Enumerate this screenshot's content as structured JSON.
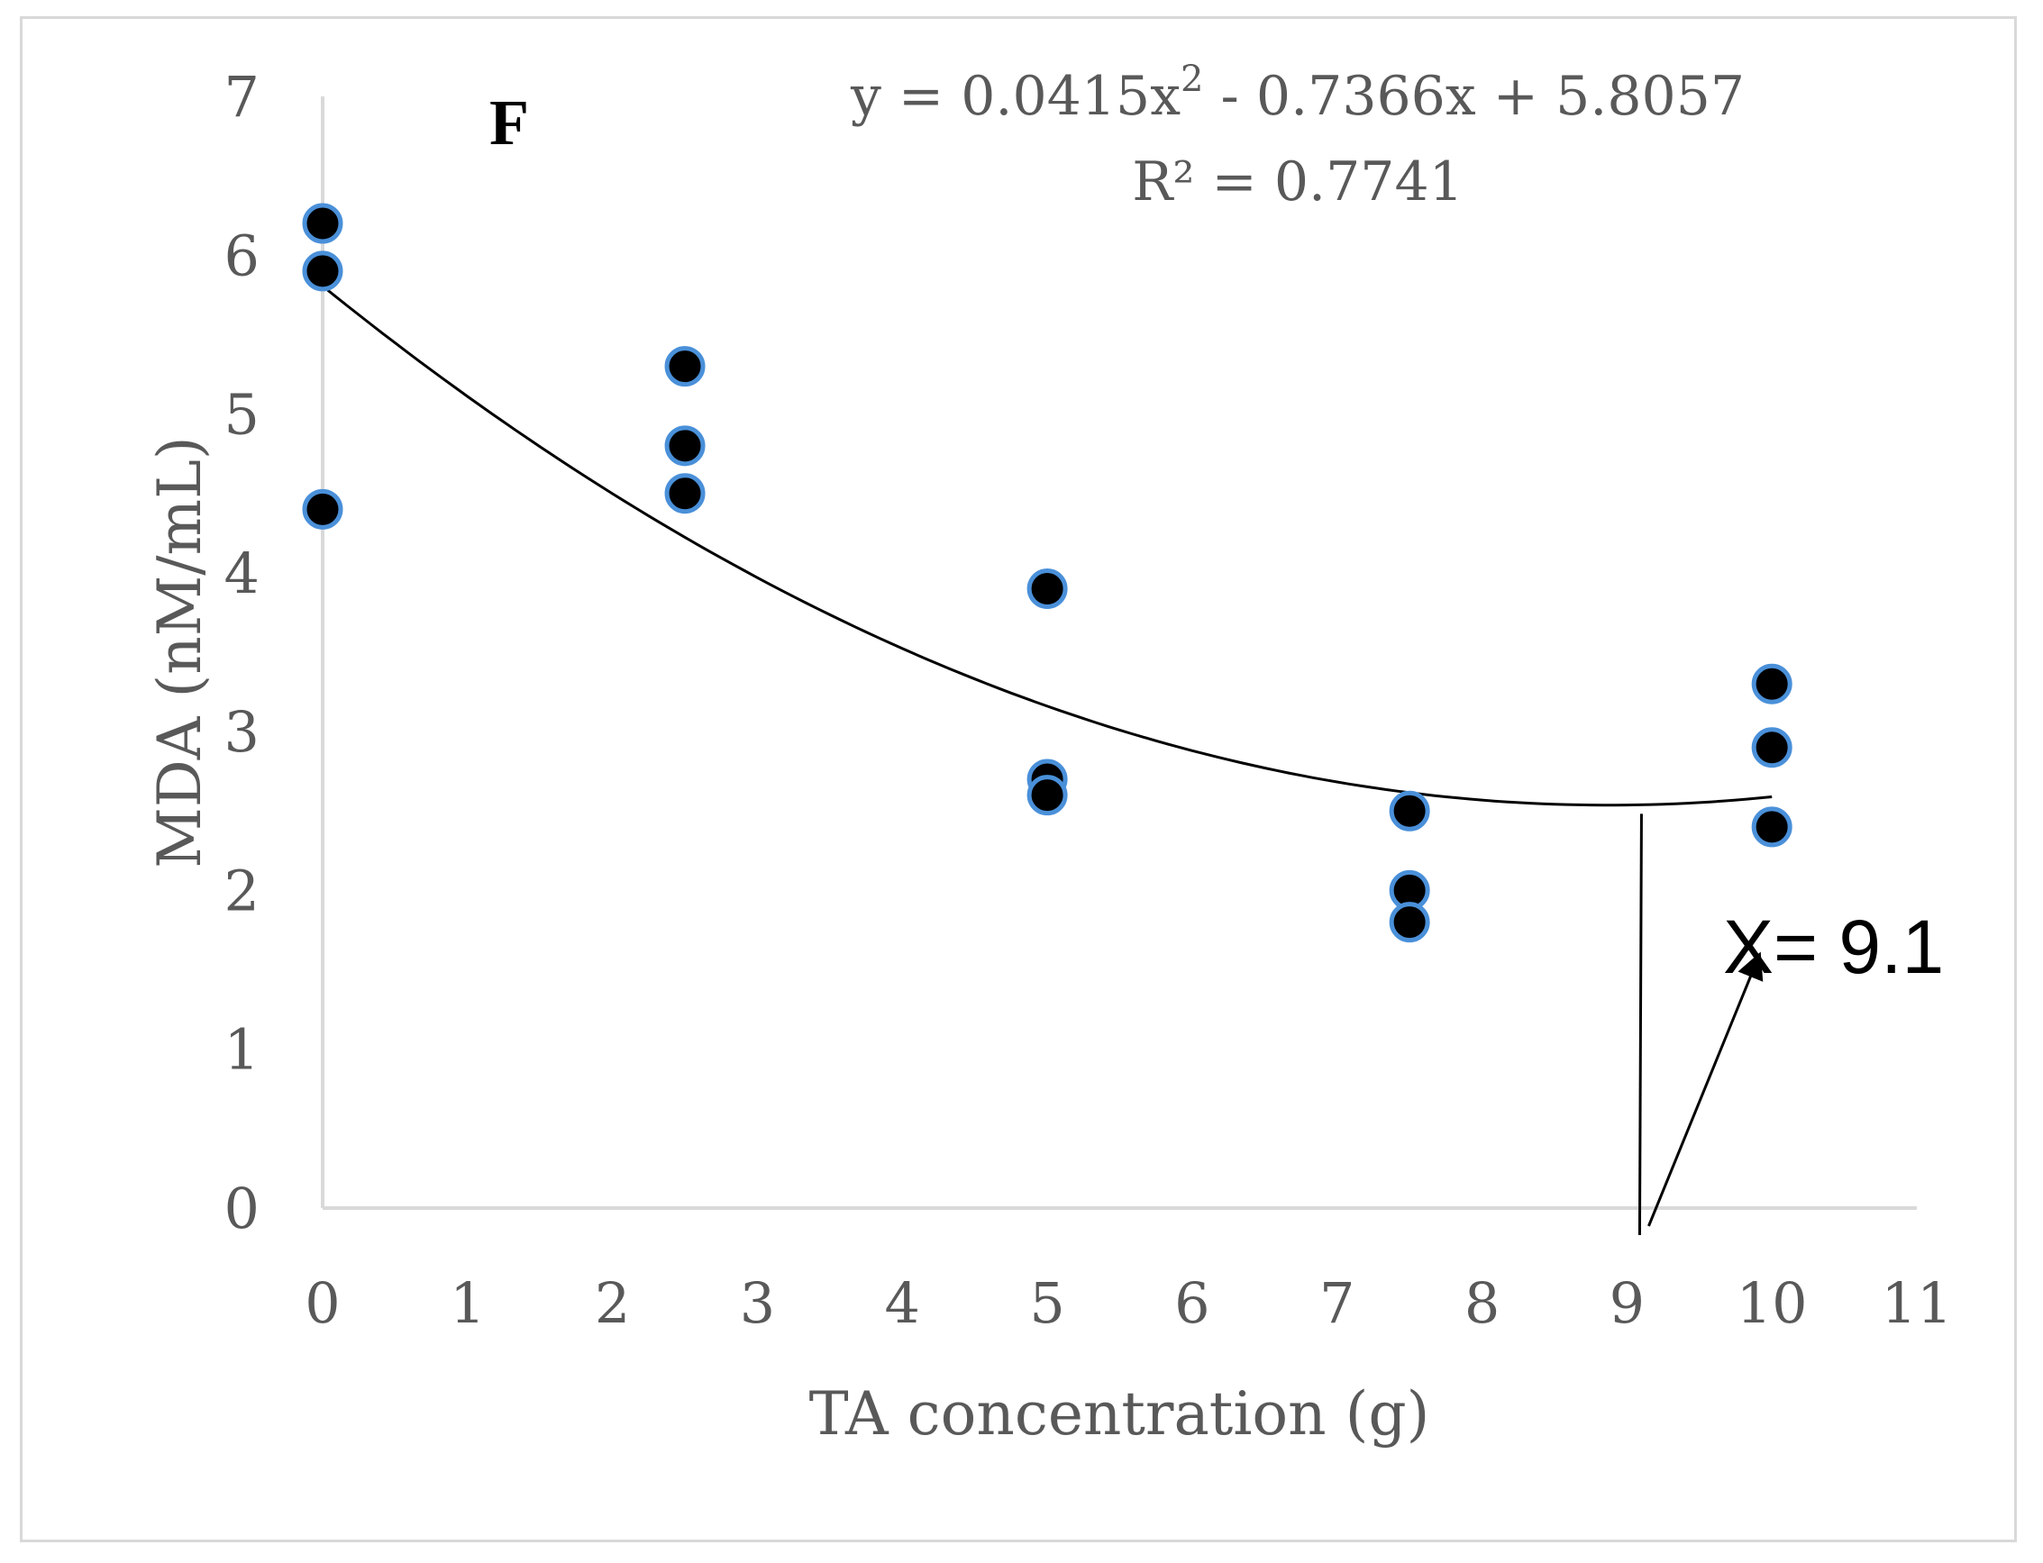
{
  "chart_data": {
    "type": "scatter",
    "panel_label": "F",
    "xlabel": "TA concentration (g)",
    "ylabel": "MDA (nM/mL)",
    "xlim": [
      0,
      11
    ],
    "ylim": [
      0,
      7
    ],
    "x_ticks": [
      "0",
      "1",
      "2",
      "3",
      "4",
      "5",
      "6",
      "7",
      "8",
      "9",
      "10",
      "11"
    ],
    "y_ticks": [
      "0",
      "1",
      "2",
      "3",
      "4",
      "5",
      "6",
      "7"
    ],
    "series": [
      {
        "name": "MDA",
        "x": [
          0,
          0,
          0,
          2.5,
          2.5,
          2.5,
          5,
          5,
          5,
          7.5,
          7.5,
          7.5,
          10,
          10,
          10
        ],
        "y": [
          6.2,
          5.9,
          4.4,
          5.3,
          4.8,
          4.5,
          3.9,
          2.7,
          2.6,
          2.5,
          2.0,
          1.8,
          3.3,
          2.9,
          2.4
        ]
      }
    ],
    "trendline": {
      "type": "polynomial",
      "order": 2,
      "coefficients": [
        0.0415,
        -0.7366,
        5.8057
      ],
      "x_range": [
        0,
        10
      ]
    },
    "equation_line1_parts": {
      "before": "y = 0.0415x",
      "superscript": "2",
      "after": " - 0.7366x + 5.8057"
    },
    "equation_line2": "R² = 0.7741",
    "annotation": {
      "text": "X= 9.1",
      "x_value": 9.1
    },
    "grid": false,
    "colors": {
      "marker_fill": "#000000",
      "marker_edge": "#4a90d9",
      "axis": "#d9d9d9",
      "text": "#595959",
      "trendline": "#000000"
    }
  }
}
